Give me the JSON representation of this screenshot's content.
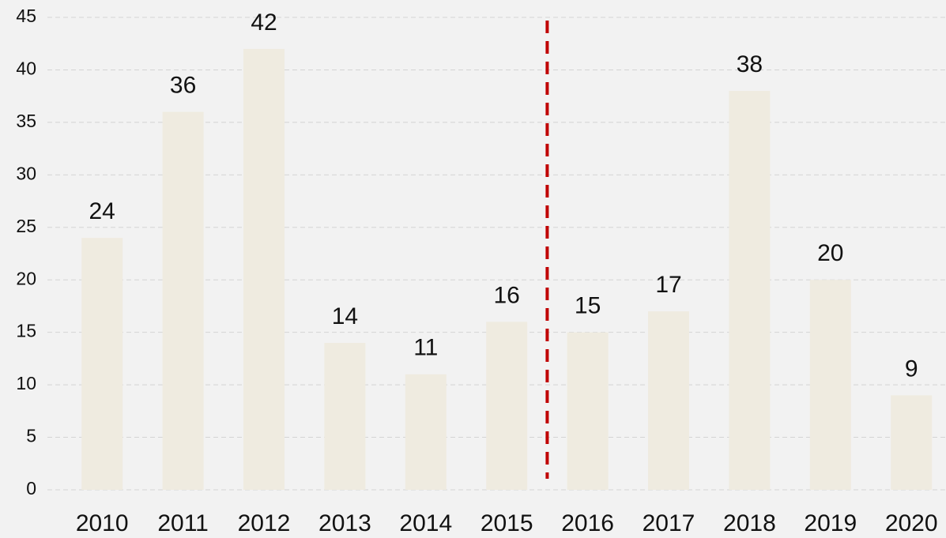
{
  "chart_data": {
    "type": "bar",
    "categories": [
      "2010",
      "2011",
      "2012",
      "2013",
      "2014",
      "2015",
      "2016",
      "2017",
      "2018",
      "2019",
      "2020"
    ],
    "values": [
      24,
      36,
      42,
      14,
      11,
      16,
      15,
      17,
      38,
      20,
      9
    ],
    "color": "#efebe0",
    "ylim": [
      0,
      45
    ],
    "yticks": [
      0,
      5,
      10,
      15,
      20,
      25,
      30,
      35,
      40,
      45
    ],
    "grid": true,
    "data_labels": true,
    "divider": {
      "after": "2015",
      "color": "#c00000"
    }
  }
}
